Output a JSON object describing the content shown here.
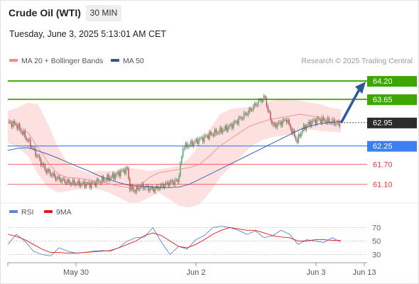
{
  "header": {
    "title": "Crude Oil (WTI)",
    "timeframe": "30 MIN",
    "datetime": "Tuesday, June 3, 2025 5:13:01 AM CET"
  },
  "legend": {
    "ma20": {
      "label": "MA 20 + Bollinger Bands",
      "color": "#f48c8c"
    },
    "ma50": {
      "label": "MA 50",
      "color": "#2d5a9c"
    },
    "credit": "Research © 2025 Trading Central"
  },
  "rsi_legend": {
    "rsi": {
      "label": "RSI",
      "color": "#5b87d6"
    },
    "ma9": {
      "label": "9MA",
      "color": "#e0181b"
    }
  },
  "chart_data": [
    {
      "type": "candlestick",
      "title": "Crude Oil (WTI)",
      "timeframe": "30 MIN",
      "x_ticks": [
        "May 30",
        "Jun 2",
        "Jun 3",
        "Jun 13"
      ],
      "ylim": [
        60.6,
        64.5
      ],
      "last_price": 62.95,
      "levels": [
        {
          "value": 64.2,
          "label": "64.20",
          "kind": "resistance",
          "color": "#3ea600"
        },
        {
          "value": 63.65,
          "label": "63.65",
          "kind": "resistance",
          "color": "#3ea600"
        },
        {
          "value": 62.95,
          "label": "62.95",
          "kind": "last",
          "color": "#2b2b2b"
        },
        {
          "value": 62.25,
          "label": "62.25",
          "kind": "pivot",
          "color": "#3b7ff0"
        },
        {
          "value": 61.7,
          "label": "61.70",
          "kind": "support",
          "color": "#ee3a3a"
        },
        {
          "value": 61.1,
          "label": "61.10",
          "kind": "support",
          "color": "#ee3a3a"
        }
      ],
      "series": [
        {
          "name": "MA 20",
          "color": "#f48c8c",
          "values": [
            62.95,
            62.85,
            62.65,
            62.2,
            61.75,
            61.4,
            61.3,
            61.28,
            61.24,
            61.18,
            61.12,
            61.05,
            61.0,
            61.05,
            61.3,
            61.45,
            61.5,
            61.55,
            61.6,
            61.7,
            61.95,
            62.25,
            62.45,
            62.65,
            62.85,
            62.95,
            63.05,
            63.1,
            63.15,
            63.2,
            63.15,
            63.1,
            63.05,
            63.0
          ]
        },
        {
          "name": "MA 50",
          "color": "#2d5a9c",
          "values": [
            62.12,
            62.18,
            62.2,
            62.1,
            62.0,
            61.88,
            61.75,
            61.62,
            61.5,
            61.36,
            61.25,
            61.15,
            61.07,
            61.05,
            61.03,
            61.0,
            61.0,
            61.02,
            61.1,
            61.25,
            61.4,
            61.55,
            61.7,
            61.85,
            62.0,
            62.15,
            62.3,
            62.45,
            62.6,
            62.75,
            62.85,
            62.92,
            62.96,
            62.98
          ]
        }
      ],
      "bollinger": {
        "upper": [
          63.3,
          63.4,
          63.55,
          63.5,
          62.9,
          62.2,
          61.7,
          61.55,
          61.45,
          61.5,
          61.5,
          61.5,
          61.6,
          61.55,
          61.5,
          61.55,
          61.6,
          61.65,
          61.9,
          62.3,
          62.75,
          63.2,
          63.35,
          63.4,
          63.42,
          63.5,
          63.6,
          63.65,
          63.65,
          63.6,
          63.55,
          63.5,
          63.4,
          63.35
        ],
        "lower": [
          62.35,
          62.2,
          61.95,
          61.4,
          61.0,
          60.85,
          60.9,
          60.95,
          60.98,
          60.95,
          60.85,
          60.7,
          60.55,
          60.55,
          60.7,
          60.85,
          60.65,
          60.45,
          60.4,
          60.5,
          60.85,
          61.3,
          61.6,
          61.9,
          62.2,
          62.4,
          62.5,
          62.55,
          62.6,
          62.7,
          62.75,
          62.7,
          62.68,
          62.65
        ]
      },
      "forecast_arrow": {
        "from": 62.95,
        "to": 64.2
      }
    },
    {
      "type": "line",
      "title": "RSI",
      "ylim": [
        20,
        80
      ],
      "y_ticks": [
        70,
        50,
        30
      ],
      "series": [
        {
          "name": "RSI",
          "color": "#5b87d6",
          "values": [
            45,
            60,
            50,
            35,
            30,
            28,
            40,
            35,
            32,
            33,
            35,
            36,
            35,
            40,
            50,
            55,
            56,
            70,
            48,
            30,
            42,
            38,
            52,
            58,
            70,
            72,
            70,
            66,
            60,
            65,
            55,
            58,
            66,
            60,
            45,
            52,
            50,
            48,
            55,
            48
          ]
        },
        {
          "name": "9MA",
          "color": "#e0181b",
          "values": [
            60,
            57,
            52,
            45,
            38,
            33,
            33,
            32,
            32,
            33,
            34,
            35,
            36,
            40,
            45,
            50,
            58,
            62,
            58,
            50,
            42,
            40,
            45,
            52,
            60,
            66,
            70,
            68,
            66,
            66,
            62,
            58,
            56,
            55,
            50,
            50,
            52,
            52,
            51,
            51
          ]
        }
      ]
    }
  ]
}
